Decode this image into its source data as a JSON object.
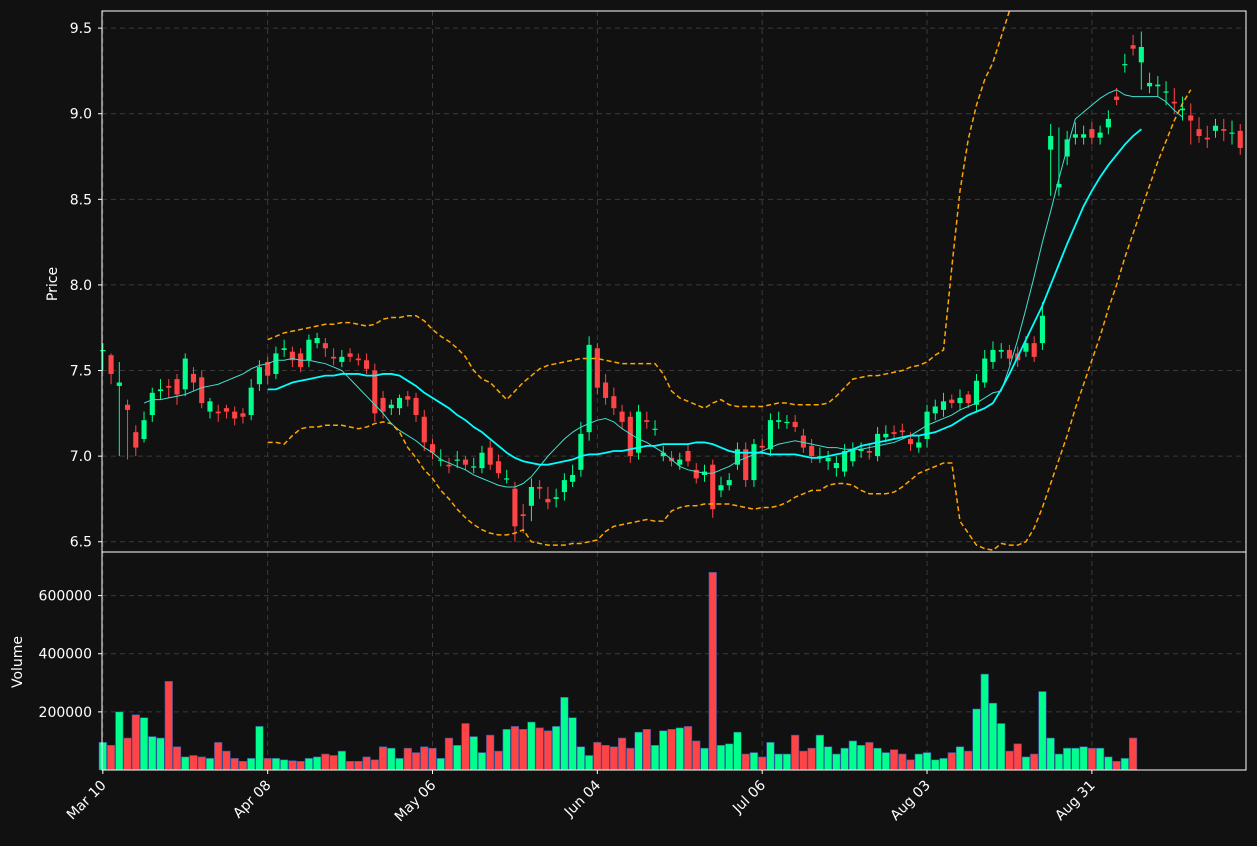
{
  "colors": {
    "background": "#111111",
    "frame": "#ffffff",
    "grid": "#3a3a3a",
    "up": "#00ff8c",
    "down": "#ff4446",
    "ma_fast": "#40e0d0",
    "ma_slow": "#00ffff",
    "bollinger": "#ffa500"
  },
  "chart_data": {
    "type": "candlestick",
    "price_panel": {
      "ylabel": "Price",
      "ylim": [
        6.44,
        9.6
      ],
      "yticks": [
        6.5,
        7.0,
        7.5,
        8.0,
        8.5,
        9.0,
        9.5
      ],
      "ytick_labels": [
        "6.5",
        "7.0",
        "7.5",
        "8.0",
        "8.5",
        "9.0",
        "9.5"
      ],
      "grid": true
    },
    "volume_panel": {
      "ylabel": "Volume",
      "ylim": [
        0,
        750000
      ],
      "yticks": [
        200000,
        400000,
        600000
      ],
      "ytick_labels": [
        "200000",
        "400000",
        "600000"
      ],
      "grid": true
    },
    "x_axis": {
      "tick_labels": [
        "Mar 10",
        "Apr 08",
        "May 06",
        "Jun 04",
        "Jul 06",
        "Aug 03",
        "Aug 31"
      ],
      "tick_index": [
        0,
        20,
        40,
        60,
        80,
        100,
        120
      ],
      "label_rotation_deg": 45
    },
    "candles": {
      "close": [
        7.62,
        7.48,
        7.43,
        7.27,
        7.05,
        7.21,
        7.37,
        7.39,
        7.4,
        7.36,
        7.57,
        7.43,
        7.31,
        7.32,
        7.25,
        7.26,
        7.22,
        7.23,
        7.4,
        7.52,
        7.47,
        7.6,
        7.63,
        7.56,
        7.52,
        7.68,
        7.69,
        7.63,
        7.57,
        7.58,
        7.58,
        7.56,
        7.51,
        7.25,
        7.26,
        7.3,
        7.34,
        7.33,
        7.24,
        7.08,
        7.02,
        6.98,
        6.94,
        6.98,
        6.95,
        6.94,
        7.02,
        6.95,
        6.9,
        6.87,
        6.59,
        6.65,
        6.82,
        6.81,
        6.73,
        6.76,
        6.86,
        6.89,
        7.13,
        7.65,
        7.4,
        7.34,
        7.28,
        7.2,
        7.0,
        7.26,
        7.2,
        7.16,
        7.02,
        6.97,
        6.98,
        6.97,
        6.87,
        6.91,
        6.69,
        6.83,
        6.86,
        7.04,
        6.86,
        7.07,
        7.05,
        7.21,
        7.21,
        7.2,
        7.17,
        7.05,
        7.0,
        7.0,
        6.99,
        6.96,
        7.03,
        7.04,
        7.04,
        7.02,
        7.13,
        7.13,
        7.13,
        7.14,
        7.07,
        7.08,
        7.26,
        7.29,
        7.32,
        7.31,
        7.34,
        7.31,
        7.44,
        7.57,
        7.62,
        7.62,
        7.57,
        7.56,
        7.66,
        7.58,
        7.82,
        8.87,
        8.59,
        8.85,
        8.88,
        8.88,
        8.86,
        8.89,
        8.97,
        9.08,
        9.29,
        9.38,
        9.39,
        9.18,
        9.17,
        9.13,
        9.06,
        9.03,
        8.96,
        8.87,
        8.85,
        8.93,
        8.9,
        8.89,
        8.8
      ],
      "open": [
        7.62,
        7.59,
        7.41,
        7.3,
        7.14,
        7.1,
        7.24,
        7.38,
        7.41,
        7.45,
        7.39,
        7.48,
        7.46,
        7.26,
        7.26,
        7.28,
        7.26,
        7.25,
        7.24,
        7.42,
        7.55,
        7.48,
        7.62,
        7.61,
        7.6,
        7.56,
        7.66,
        7.66,
        7.58,
        7.55,
        7.6,
        7.57,
        7.56,
        7.5,
        7.34,
        7.28,
        7.28,
        7.35,
        7.34,
        7.23,
        7.07,
        6.98,
        6.95,
        6.98,
        6.98,
        6.94,
        6.93,
        7.05,
        6.97,
        6.87,
        6.81,
        6.66,
        6.71,
        6.82,
        6.75,
        6.75,
        6.79,
        6.85,
        6.92,
        7.14,
        7.63,
        7.43,
        7.35,
        7.26,
        7.23,
        7.02,
        7.21,
        7.16,
        7.0,
        6.99,
        6.95,
        7.03,
        6.92,
        6.89,
        6.95,
        6.8,
        6.83,
        6.95,
        7.04,
        6.86,
        7.06,
        7.04,
        7.2,
        7.2,
        7.2,
        7.12,
        7.06,
        7.0,
        6.97,
        6.93,
        6.91,
        6.97,
        7.03,
        7.03,
        7.0,
        7.11,
        7.14,
        7.15,
        7.1,
        7.05,
        7.1,
        7.25,
        7.27,
        7.33,
        7.31,
        7.36,
        7.3,
        7.43,
        7.55,
        7.61,
        7.62,
        7.6,
        7.61,
        7.66,
        7.66,
        8.79,
        8.57,
        8.75,
        8.86,
        8.86,
        8.91,
        8.86,
        8.92,
        9.1,
        9.29,
        9.4,
        9.3,
        9.16,
        9.16,
        9.13,
        9.07,
        9.02,
        8.99,
        8.91,
        8.86,
        8.9,
        8.91,
        8.89,
        8.9
      ],
      "high": [
        7.66,
        7.6,
        7.55,
        7.33,
        7.18,
        7.26,
        7.4,
        7.45,
        7.45,
        7.48,
        7.6,
        7.52,
        7.5,
        7.34,
        7.3,
        7.3,
        7.29,
        7.28,
        7.45,
        7.56,
        7.58,
        7.64,
        7.68,
        7.64,
        7.63,
        7.71,
        7.72,
        7.69,
        7.63,
        7.62,
        7.63,
        7.6,
        7.6,
        7.54,
        7.38,
        7.33,
        7.36,
        7.38,
        7.37,
        7.27,
        7.1,
        7.04,
        6.99,
        7.03,
        7.0,
        6.99,
        7.06,
        7.09,
        7.01,
        6.92,
        6.85,
        6.72,
        6.87,
        6.86,
        6.82,
        6.81,
        6.9,
        6.95,
        7.2,
        7.7,
        7.66,
        7.48,
        7.4,
        7.3,
        7.26,
        7.3,
        7.26,
        7.21,
        7.06,
        7.03,
        7.02,
        7.07,
        6.96,
        6.95,
        6.98,
        6.88,
        6.9,
        7.08,
        7.08,
        7.1,
        7.1,
        7.25,
        7.26,
        7.24,
        7.24,
        7.16,
        7.1,
        7.05,
        7.03,
        7.0,
        7.07,
        7.08,
        7.08,
        7.07,
        7.17,
        7.18,
        7.18,
        7.19,
        7.14,
        7.12,
        7.3,
        7.33,
        7.37,
        7.36,
        7.39,
        7.38,
        7.48,
        7.62,
        7.67,
        7.66,
        7.65,
        7.64,
        7.7,
        7.7,
        7.9,
        8.94,
        8.92,
        8.9,
        8.95,
        8.93,
        8.95,
        8.93,
        9.02,
        9.15,
        9.35,
        9.46,
        9.48,
        9.24,
        9.22,
        9.19,
        9.15,
        9.1,
        9.06,
        8.98,
        8.93,
        8.97,
        8.97,
        8.96,
        8.94
      ],
      "low": [
        7.5,
        7.42,
        7.0,
        6.98,
        7.0,
        7.08,
        7.2,
        7.33,
        7.34,
        7.3,
        7.35,
        7.38,
        7.28,
        7.22,
        7.2,
        7.22,
        7.18,
        7.19,
        7.21,
        7.38,
        7.42,
        7.45,
        7.58,
        7.52,
        7.49,
        7.52,
        7.63,
        7.58,
        7.53,
        7.52,
        7.55,
        7.53,
        7.48,
        7.2,
        7.22,
        7.24,
        7.24,
        7.29,
        7.2,
        7.03,
        6.98,
        6.94,
        6.9,
        6.93,
        6.92,
        6.9,
        6.9,
        6.92,
        6.87,
        6.84,
        6.5,
        6.55,
        6.62,
        6.75,
        6.69,
        6.7,
        6.74,
        6.82,
        6.88,
        7.09,
        7.36,
        7.3,
        7.24,
        7.16,
        6.96,
        6.98,
        7.16,
        7.12,
        6.97,
        6.94,
        6.92,
        6.94,
        6.84,
        6.85,
        6.64,
        6.76,
        6.8,
        6.92,
        6.82,
        6.82,
        7.01,
        7.0,
        7.16,
        7.16,
        7.14,
        7.02,
        6.96,
        6.96,
        6.92,
        6.88,
        6.88,
        6.94,
        6.99,
        6.98,
        6.97,
        7.08,
        7.1,
        7.11,
        7.03,
        7.02,
        7.05,
        7.21,
        7.23,
        7.28,
        7.27,
        7.28,
        7.26,
        7.4,
        7.51,
        7.57,
        7.53,
        7.52,
        7.58,
        7.55,
        7.62,
        8.52,
        8.52,
        8.7,
        8.82,
        8.82,
        8.82,
        8.82,
        8.88,
        9.05,
        9.24,
        9.34,
        9.14,
        9.12,
        9.1,
        9.05,
        9.0,
        8.96,
        8.82,
        8.83,
        8.8,
        8.86,
        8.84,
        8.82,
        8.76
      ]
    },
    "volume": [
      95000,
      85000,
      200000,
      110000,
      190000,
      180000,
      115000,
      110000,
      305000,
      80000,
      45000,
      50000,
      45000,
      40000,
      95000,
      65000,
      40000,
      30000,
      40000,
      150000,
      40000,
      40000,
      35000,
      32000,
      30000,
      40000,
      45000,
      55000,
      50000,
      65000,
      30000,
      30000,
      45000,
      35000,
      80000,
      75000,
      40000,
      75000,
      60000,
      80000,
      75000,
      40000,
      110000,
      85000,
      160000,
      115000,
      60000,
      120000,
      65000,
      140000,
      150000,
      140000,
      165000,
      145000,
      135000,
      150000,
      250000,
      180000,
      80000,
      50000,
      95000,
      85000,
      80000,
      110000,
      75000,
      130000,
      140000,
      85000,
      135000,
      140000,
      145000,
      150000,
      100000,
      75000,
      680000,
      85000,
      90000,
      130000,
      55000,
      60000,
      45000,
      95000,
      55000,
      55000,
      120000,
      65000,
      75000,
      120000,
      80000,
      55000,
      75000,
      100000,
      85000,
      95000,
      75000,
      60000,
      70000,
      55000,
      35000,
      55000,
      60000,
      35000,
      40000,
      60000,
      80000,
      65000,
      210000,
      330000,
      230000,
      160000,
      65000,
      90000,
      45000,
      55000,
      270000,
      110000,
      55000,
      75000,
      75000,
      80000,
      75000,
      75000,
      45000,
      30000,
      40000,
      110000
    ],
    "overlays": [
      {
        "kind": "moving-average-fast",
        "values": [
          null,
          null,
          null,
          null,
          null,
          7.31,
          7.33,
          7.33,
          7.34,
          7.35,
          7.36,
          7.38,
          7.4,
          7.41,
          7.42,
          7.44,
          7.46,
          7.48,
          7.51,
          7.53,
          7.54,
          7.56,
          7.56,
          7.57,
          7.56,
          7.56,
          7.55,
          7.54,
          7.52,
          7.5,
          7.45,
          7.4,
          7.35,
          7.3,
          7.25,
          7.19,
          7.15,
          7.12,
          7.09,
          7.05,
          7.02,
          6.98,
          6.96,
          6.94,
          6.92,
          6.89,
          6.87,
          6.85,
          6.83,
          6.82,
          6.82,
          6.84,
          6.88,
          6.94,
          7.0,
          7.05,
          7.1,
          7.14,
          7.17,
          7.19,
          7.21,
          7.22,
          7.2,
          7.16,
          7.13,
          7.1,
          7.08,
          7.05,
          7.02,
          6.98,
          6.94,
          6.92,
          6.91,
          6.9,
          6.9,
          6.92,
          6.94,
          6.97,
          6.99,
          7.01,
          7.03,
          7.05,
          7.07,
          7.08,
          7.09,
          7.08,
          7.07,
          7.06,
          7.05,
          7.05,
          7.04,
          7.04,
          7.04,
          7.05,
          7.06,
          7.07,
          7.08,
          7.1,
          7.12,
          7.15,
          7.18,
          7.2,
          7.22,
          7.24,
          7.27,
          7.29,
          7.31,
          7.34,
          7.37,
          7.38,
          7.52,
          7.68,
          7.86,
          8.05,
          8.25,
          8.43,
          8.62,
          8.8,
          8.97,
          9.01,
          9.05,
          9.09,
          9.12,
          9.14,
          9.11,
          9.1,
          9.1,
          9.1,
          9.1,
          9.07,
          9.02,
          8.98
        ]
      },
      {
        "kind": "moving-average-slow",
        "values": [
          null,
          null,
          null,
          null,
          null,
          null,
          null,
          null,
          null,
          null,
          null,
          null,
          null,
          null,
          null,
          null,
          null,
          null,
          null,
          null,
          7.39,
          7.39,
          7.41,
          7.43,
          7.44,
          7.45,
          7.46,
          7.47,
          7.47,
          7.48,
          7.48,
          7.48,
          7.47,
          7.47,
          7.48,
          7.48,
          7.47,
          7.44,
          7.41,
          7.37,
          7.34,
          7.31,
          7.28,
          7.24,
          7.21,
          7.17,
          7.14,
          7.1,
          7.06,
          7.02,
          6.99,
          6.97,
          6.96,
          6.95,
          6.95,
          6.96,
          6.97,
          6.98,
          7.0,
          7.01,
          7.01,
          7.02,
          7.03,
          7.03,
          7.04,
          7.05,
          7.06,
          7.06,
          7.07,
          7.07,
          7.07,
          7.07,
          7.08,
          7.08,
          7.07,
          7.05,
          7.03,
          7.02,
          7.02,
          7.02,
          7.02,
          7.01,
          7.01,
          7.01,
          7.01,
          7.0,
          6.99,
          6.99,
          7.0,
          7.01,
          7.02,
          7.04,
          7.06,
          7.07,
          7.08,
          7.09,
          7.1,
          7.11,
          7.12,
          7.12,
          7.13,
          7.14,
          7.16,
          7.18,
          7.21,
          7.24,
          7.26,
          7.28,
          7.31,
          7.39,
          7.48,
          7.58,
          7.68,
          7.78,
          7.88,
          8.0,
          8.12,
          8.24,
          8.35,
          8.46,
          8.55,
          8.63,
          8.7,
          8.76,
          8.82,
          8.87,
          8.91
        ]
      },
      {
        "kind": "bollinger-upper",
        "values": [
          null,
          null,
          null,
          null,
          null,
          null,
          null,
          null,
          null,
          null,
          null,
          null,
          null,
          null,
          null,
          null,
          null,
          null,
          null,
          null,
          7.68,
          7.7,
          7.72,
          7.73,
          7.74,
          7.75,
          7.76,
          7.77,
          7.77,
          7.78,
          7.78,
          7.77,
          7.76,
          7.77,
          7.8,
          7.81,
          7.81,
          7.82,
          7.82,
          7.79,
          7.74,
          7.7,
          7.67,
          7.63,
          7.58,
          7.5,
          7.45,
          7.43,
          7.38,
          7.33,
          7.38,
          7.43,
          7.47,
          7.51,
          7.53,
          7.54,
          7.55,
          7.56,
          7.57,
          7.57,
          7.57,
          7.56,
          7.55,
          7.54,
          7.54,
          7.54,
          7.54,
          7.54,
          7.48,
          7.38,
          7.34,
          7.32,
          7.3,
          7.28,
          7.31,
          7.33,
          7.3,
          7.29,
          7.29,
          7.29,
          7.29,
          7.3,
          7.31,
          7.31,
          7.3,
          7.3,
          7.3,
          7.3,
          7.31,
          7.35,
          7.4,
          7.45,
          7.46,
          7.47,
          7.47,
          7.48,
          7.49,
          7.5,
          7.52,
          7.53,
          7.55,
          7.59,
          7.62,
          8.1,
          8.55,
          8.85,
          9.05,
          9.2,
          9.3,
          9.45,
          9.6,
          9.8,
          9.95,
          10.05,
          10.15,
          10.22,
          10.28,
          10.32,
          10.35,
          10.37,
          10.38,
          10.38,
          10.37,
          10.35,
          10.33,
          10.3,
          10.28,
          10.26,
          10.24,
          10.22,
          10.2,
          10.18,
          10.16
        ]
      },
      {
        "kind": "bollinger-lower",
        "values": [
          null,
          null,
          null,
          null,
          null,
          null,
          null,
          null,
          null,
          null,
          null,
          null,
          null,
          null,
          null,
          null,
          null,
          null,
          null,
          null,
          7.08,
          7.08,
          7.07,
          7.12,
          7.16,
          7.17,
          7.17,
          7.18,
          7.18,
          7.18,
          7.17,
          7.16,
          7.17,
          7.19,
          7.2,
          7.19,
          7.14,
          7.05,
          6.99,
          6.92,
          6.87,
          6.8,
          6.75,
          6.69,
          6.64,
          6.6,
          6.57,
          6.55,
          6.54,
          6.54,
          6.55,
          6.57,
          6.5,
          6.49,
          6.48,
          6.48,
          6.48,
          6.49,
          6.49,
          6.5,
          6.51,
          6.56,
          6.59,
          6.6,
          6.61,
          6.62,
          6.63,
          6.62,
          6.62,
          6.68,
          6.7,
          6.71,
          6.71,
          6.72,
          6.72,
          6.72,
          6.72,
          6.71,
          6.7,
          6.69,
          6.7,
          6.7,
          6.71,
          6.73,
          6.76,
          6.78,
          6.8,
          6.8,
          6.83,
          6.84,
          6.84,
          6.83,
          6.8,
          6.78,
          6.78,
          6.78,
          6.79,
          6.82,
          6.86,
          6.9,
          6.92,
          6.94,
          6.96,
          6.96,
          6.62,
          6.55,
          6.48,
          6.46,
          6.45,
          6.49,
          6.48,
          6.48,
          6.5,
          6.58,
          6.7,
          6.84,
          6.98,
          7.12,
          7.28,
          7.42,
          7.56,
          7.7,
          7.86,
          8.0,
          8.16,
          8.3,
          8.44,
          8.58,
          8.72,
          8.84,
          8.96,
          9.06,
          9.14
        ]
      }
    ]
  }
}
